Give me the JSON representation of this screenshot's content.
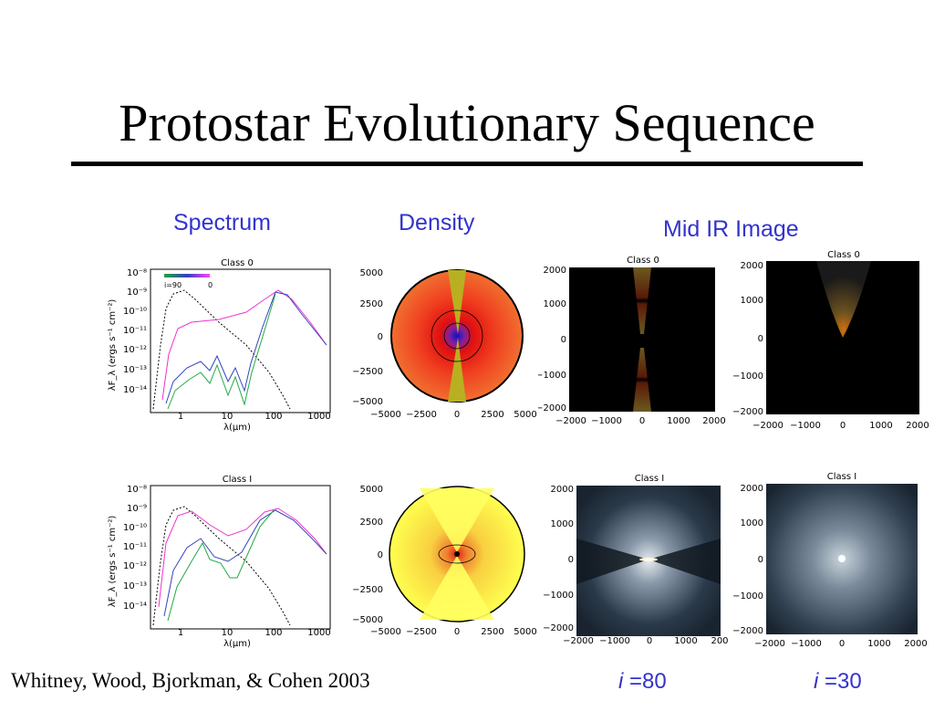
{
  "title": "Protostar Evolutionary Sequence",
  "headers": {
    "spectrum": "Spectrum",
    "density": "Density",
    "midir": "Mid IR Image"
  },
  "spectrum_panels": [
    {
      "panel_title": "Class 0",
      "xlabel": "λ(μm)",
      "ylabel": "λF_λ (ergs s⁻¹ cm⁻²)",
      "xticks": [
        "1",
        "10",
        "100",
        "1000"
      ],
      "yticks": [
        "10⁻⁸",
        "10⁻⁹",
        "10⁻¹⁰",
        "10⁻¹¹",
        "10⁻¹²",
        "10⁻¹³",
        "10⁻¹⁴"
      ],
      "legend_left": "i=90",
      "legend_right": "0"
    },
    {
      "panel_title": "Class I",
      "xlabel": "λ(μm)",
      "ylabel": "λF_λ (ergs s⁻¹ cm⁻²)",
      "xticks": [
        "1",
        "10",
        "100",
        "1000"
      ],
      "yticks": [
        "10⁻⁸",
        "10⁻⁹",
        "10⁻¹⁰",
        "10⁻¹¹",
        "10⁻¹²",
        "10⁻¹³",
        "10⁻¹⁴"
      ]
    }
  ],
  "density_panels": [
    {
      "xticks": [
        "−5000",
        "−2500",
        "0",
        "2500",
        "5000"
      ],
      "yticks": [
        "5000",
        "2500",
        "0",
        "−2500",
        "−5000"
      ]
    },
    {
      "xticks": [
        "−5000",
        "−2500",
        "0",
        "2500",
        "5000"
      ],
      "yticks": [
        "5000",
        "2500",
        "0",
        "−2500",
        "−5000"
      ]
    }
  ],
  "image_panels": [
    {
      "panel_title": "Class 0",
      "xticks": [
        "−2000",
        "−1000",
        "0",
        "1000",
        "2000"
      ],
      "yticks": [
        "2000",
        "1000",
        "0",
        "−1000",
        "−2000"
      ]
    },
    {
      "panel_title": "Class 0",
      "xticks": [
        "−2000",
        "−1000",
        "0",
        "1000",
        "2000"
      ],
      "yticks": [
        "2000",
        "1000",
        "0",
        "−1000",
        "−2000"
      ]
    },
    {
      "panel_title": "Class I",
      "xticks": [
        "−2000",
        "−1000",
        "0",
        "1000",
        "200"
      ],
      "yticks": [
        "2000",
        "1000",
        "0",
        "−1000",
        "−2000"
      ]
    },
    {
      "panel_title": "Class I",
      "xticks": [
        "−2000",
        "−1000",
        "0",
        "1000",
        "2000"
      ],
      "yticks": [
        "2000",
        "1000",
        "0",
        "−1000",
        "−2000"
      ]
    }
  ],
  "inclinations": [
    {
      "var": "i",
      "text": " =80"
    },
    {
      "var": "i",
      "text": " =30"
    }
  ],
  "credit": "Whitney, Wood, Bjorkman, & Cohen 2003",
  "colors": {
    "header": "#3333cc",
    "class0_bg": "#ef4a1a",
    "class1_bg": "#ffff4a",
    "cavity0": "#b8b020"
  }
}
